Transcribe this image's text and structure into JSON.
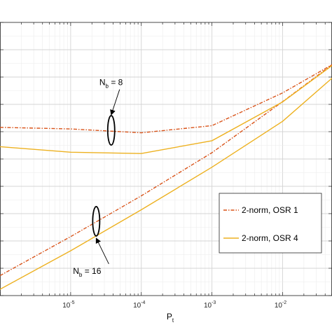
{
  "chart_data": {
    "type": "line",
    "xlabel": "P",
    "xlabel_sub": "t",
    "x_scale": "log",
    "xlim": [
      1e-06,
      0.05
    ],
    "y_scale": "linear",
    "ylim": [
      0,
      10
    ],
    "grid": true,
    "x_ticks": [
      {
        "value": 1e-05,
        "base": "10",
        "exp": "-5"
      },
      {
        "value": 0.0001,
        "base": "10",
        "exp": "-4"
      },
      {
        "value": 0.001,
        "base": "10",
        "exp": "-3"
      },
      {
        "value": 0.01,
        "base": "10",
        "exp": "-2"
      }
    ],
    "legend_placement": "bottom-right",
    "series": [
      {
        "name": "2-norm, OSR 1",
        "color": "#d95319",
        "dash": "dashdot",
        "group": "Nb=8",
        "x": [
          1e-06,
          1e-05,
          0.0001,
          0.001,
          0.01,
          0.05
        ],
        "y": [
          6.16,
          6.1,
          5.96,
          6.22,
          7.42,
          8.45
        ]
      },
      {
        "name": "2-norm, OSR 1",
        "color": "#d95319",
        "dash": "dashdot",
        "group": "Nb=16",
        "x": [
          1e-06,
          1e-05,
          0.0001,
          0.001,
          0.01,
          0.05
        ],
        "y": [
          0.73,
          2.16,
          3.65,
          5.23,
          7.1,
          8.45
        ]
      },
      {
        "name": "2-norm, OSR 4",
        "color": "#edb120",
        "dash": "solid",
        "group": "Nb=8",
        "x": [
          1e-06,
          1e-05,
          0.0001,
          0.001,
          0.01,
          0.05
        ],
        "y": [
          5.45,
          5.25,
          5.2,
          5.67,
          7.09,
          8.42
        ]
      },
      {
        "name": "2-norm, OSR 4",
        "color": "#edb120",
        "dash": "solid",
        "group": "Nb=16",
        "x": [
          1e-06,
          1e-05,
          0.0001,
          0.001,
          0.01,
          0.05
        ],
        "y": [
          0.23,
          1.64,
          3.14,
          4.7,
          6.38,
          7.96
        ]
      }
    ],
    "annotations": [
      {
        "text": "N",
        "sub": "b",
        "rest": " = 8",
        "x": 2.55e-05,
        "y": 7.7,
        "arrow_to": [
          3.75e-05,
          6.62
        ],
        "ellipse_center": [
          3.75e-05,
          6.05
        ]
      },
      {
        "text": "N",
        "sub": "b",
        "rest": " = 16",
        "x": 1.08e-05,
        "y": 0.8,
        "arrow_to": [
          2.3e-05,
          2.1
        ],
        "ellipse_center": [
          2.3e-05,
          2.72
        ]
      }
    ],
    "legend": [
      {
        "label": "2-norm, OSR 1",
        "color": "#d95319",
        "dash": "dashdot"
      },
      {
        "label": "2-norm, OSR 4",
        "color": "#edb120",
        "dash": "solid"
      }
    ]
  }
}
